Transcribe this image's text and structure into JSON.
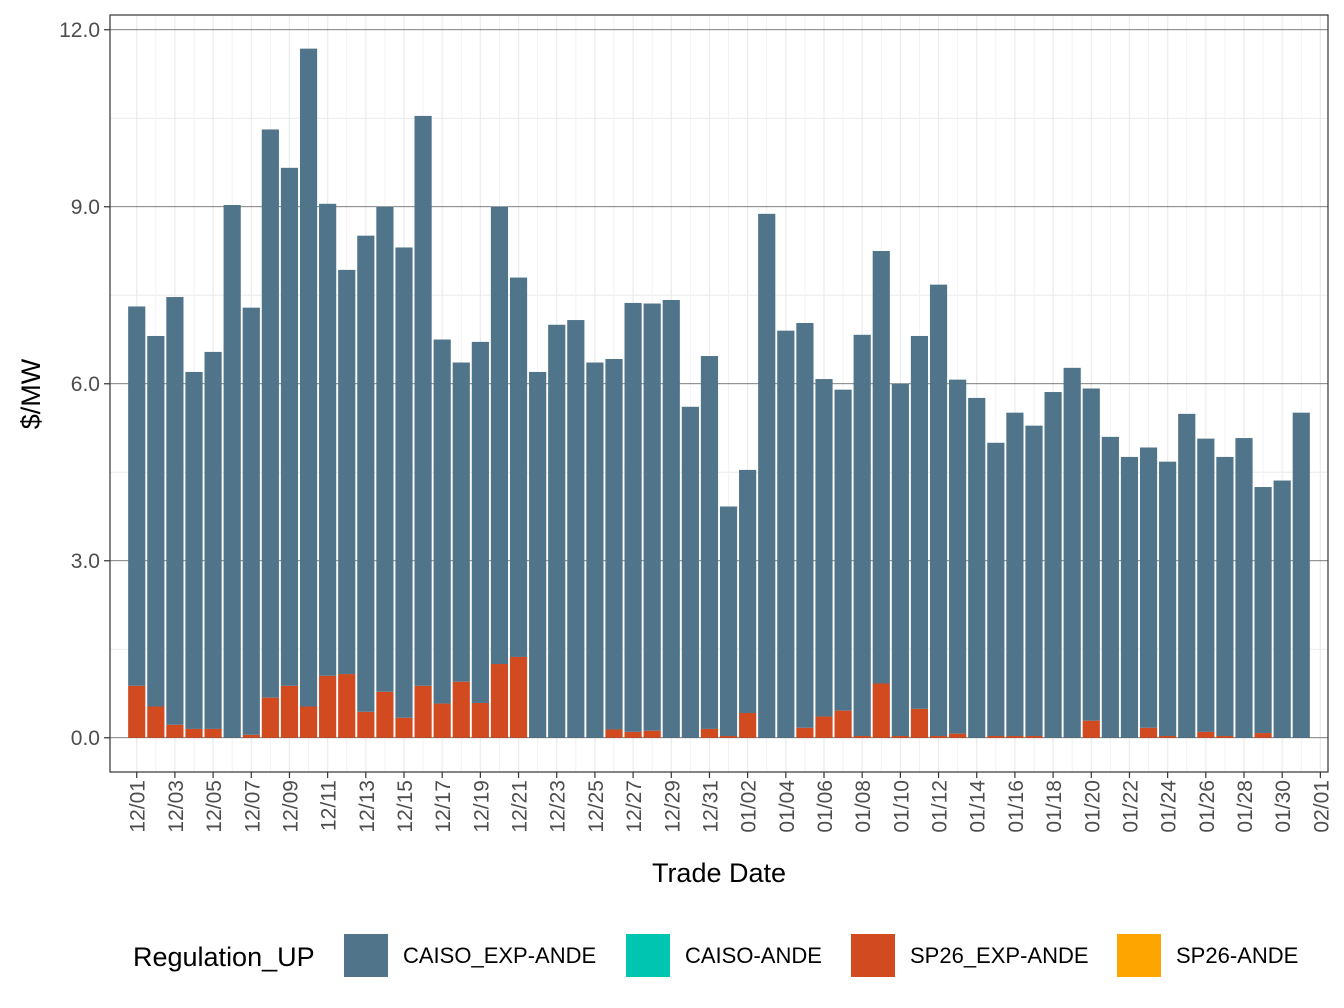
{
  "chart_data": {
    "type": "stacked_bar",
    "x_label": "Trade Date",
    "y_label": "$/MW",
    "legend_title": "Regulation_UP",
    "legend": "bottom",
    "grid": true,
    "ylim": [
      -0.58,
      12.25
    ],
    "yticks": [
      {
        "value": 0,
        "label": "0.0"
      },
      {
        "value": 3,
        "label": "3.0"
      },
      {
        "value": 6,
        "label": "6.0"
      },
      {
        "value": 9,
        "label": "9.0"
      },
      {
        "value": 12,
        "label": "12.0"
      }
    ],
    "xlim": [
      -1.4,
      62.4
    ],
    "xticks": [
      {
        "value": 0,
        "label": "12/01"
      },
      {
        "value": 2,
        "label": "12/03"
      },
      {
        "value": 4,
        "label": "12/05"
      },
      {
        "value": 6,
        "label": "12/07"
      },
      {
        "value": 8,
        "label": "12/09"
      },
      {
        "value": 10,
        "label": "12/11"
      },
      {
        "value": 12,
        "label": "12/13"
      },
      {
        "value": 14,
        "label": "12/15"
      },
      {
        "value": 16,
        "label": "12/17"
      },
      {
        "value": 18,
        "label": "12/19"
      },
      {
        "value": 20,
        "label": "12/21"
      },
      {
        "value": 22,
        "label": "12/23"
      },
      {
        "value": 24,
        "label": "12/25"
      },
      {
        "value": 26,
        "label": "12/27"
      },
      {
        "value": 28,
        "label": "12/29"
      },
      {
        "value": 30,
        "label": "12/31"
      },
      {
        "value": 32,
        "label": "01/02"
      },
      {
        "value": 34,
        "label": "01/04"
      },
      {
        "value": 36,
        "label": "01/06"
      },
      {
        "value": 38,
        "label": "01/08"
      },
      {
        "value": 40,
        "label": "01/10"
      },
      {
        "value": 42,
        "label": "01/12"
      },
      {
        "value": 44,
        "label": "01/14"
      },
      {
        "value": 46,
        "label": "01/16"
      },
      {
        "value": 48,
        "label": "01/18"
      },
      {
        "value": 50,
        "label": "01/20"
      },
      {
        "value": 52,
        "label": "01/22"
      },
      {
        "value": 54,
        "label": "01/24"
      },
      {
        "value": 56,
        "label": "01/26"
      },
      {
        "value": 58,
        "label": "01/28"
      },
      {
        "value": 60,
        "label": "01/30"
      },
      {
        "value": 62,
        "label": "02/01"
      }
    ],
    "series": [
      {
        "name": "CAISO_EXP-ANDE",
        "color": "#50758a",
        "values": [
          6.43,
          6.28,
          7.25,
          6.05,
          6.39,
          9.03,
          7.24,
          9.63,
          8.78,
          11.15,
          8.0,
          6.85,
          8.07,
          8.22,
          7.97,
          9.66,
          6.17,
          5.41,
          6.12,
          7.75,
          6.43,
          6.2,
          7.0,
          7.08,
          6.36,
          6.28,
          7.27,
          7.24,
          7.42,
          5.61,
          6.32,
          3.89,
          4.12,
          8.88,
          6.9,
          6.86,
          5.72,
          5.44,
          6.8,
          7.33,
          5.97,
          6.32,
          7.65,
          6.0,
          5.76,
          4.97,
          5.48,
          5.26,
          5.86,
          6.27,
          5.63,
          5.1,
          4.76,
          4.75,
          4.65,
          5.49,
          4.97,
          4.73,
          5.08,
          4.17,
          4.36,
          5.51
        ]
      },
      {
        "name": "CAISO-ANDE",
        "color": "#00c5b0",
        "values": [
          0,
          0,
          0,
          0,
          0,
          0,
          0,
          0,
          0,
          0,
          0,
          0,
          0,
          0,
          0,
          0,
          0,
          0,
          0,
          0,
          0,
          0,
          0,
          0,
          0,
          0,
          0,
          0,
          0,
          0,
          0,
          0,
          0,
          0,
          0,
          0,
          0,
          0,
          0,
          0,
          0,
          0,
          0,
          0,
          0,
          0,
          0,
          0,
          0,
          0,
          0,
          0,
          0,
          0,
          0,
          0,
          0,
          0,
          0,
          0,
          0,
          0
        ]
      },
      {
        "name": "SP26_EXP-ANDE",
        "color": "#d24a20",
        "values": [
          0.88,
          0.53,
          0.22,
          0.15,
          0.15,
          0,
          0.05,
          0.68,
          0.88,
          0.53,
          1.05,
          1.08,
          0.44,
          0.78,
          0.34,
          0.88,
          0.58,
          0.95,
          0.59,
          1.25,
          1.37,
          0,
          0,
          0,
          0,
          0.14,
          0.1,
          0.12,
          0,
          0,
          0.15,
          0.03,
          0.42,
          0,
          0,
          0.17,
          0.36,
          0.46,
          0.03,
          0.92,
          0.03,
          0.49,
          0.03,
          0.07,
          0,
          0.03,
          0.03,
          0.03,
          0,
          0,
          0.29,
          0,
          0,
          0.17,
          0.03,
          0,
          0.1,
          0.03,
          0,
          0.08,
          0,
          0
        ]
      },
      {
        "name": "SP26-ANDE",
        "color": "#ffa500",
        "values": [
          0,
          0,
          0,
          0,
          0,
          0,
          0,
          0,
          0,
          0,
          0,
          0,
          0,
          0,
          0,
          0,
          0,
          0,
          0,
          0,
          0,
          0,
          0,
          0,
          0,
          0,
          0,
          0,
          0,
          0,
          0,
          0,
          0,
          0,
          0,
          0,
          0,
          0,
          0,
          0,
          0,
          0,
          0,
          0,
          0,
          0,
          0,
          0,
          0,
          0,
          0,
          0,
          0,
          0,
          0,
          0,
          0,
          0,
          0,
          0,
          0,
          0
        ]
      }
    ]
  }
}
